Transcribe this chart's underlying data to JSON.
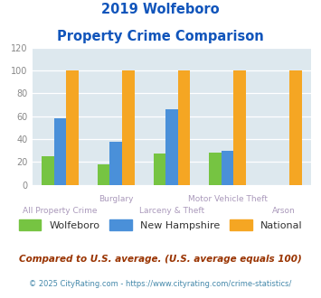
{
  "title_line1": "2019 Wolfeboro",
  "title_line2": "Property Crime Comparison",
  "categories": [
    "All Property Crime",
    "Burglary",
    "Larceny & Theft",
    "Motor Vehicle Theft",
    "Arson"
  ],
  "wolfeboro": [
    25,
    18,
    27,
    28,
    0
  ],
  "new_hampshire": [
    58,
    38,
    66,
    30,
    0
  ],
  "national": [
    100,
    100,
    100,
    100,
    100
  ],
  "color_wolfeboro": "#76C442",
  "color_nh": "#4A90D9",
  "color_national": "#F5A623",
  "ylim": [
    0,
    120
  ],
  "yticks": [
    0,
    20,
    40,
    60,
    80,
    100,
    120
  ],
  "bg_color": "#DDE8EE",
  "footnote1": "Compared to U.S. average. (U.S. average equals 100)",
  "footnote2": "© 2025 CityRating.com - https://www.cityrating.com/crime-statistics/",
  "title_color": "#1155BB",
  "label_color": "#AA99BB",
  "ytick_color": "#888888",
  "footnote1_color": "#993300",
  "footnote2_color": "#4488AA",
  "legend_text_color": "#333333",
  "bar_width": 0.22
}
